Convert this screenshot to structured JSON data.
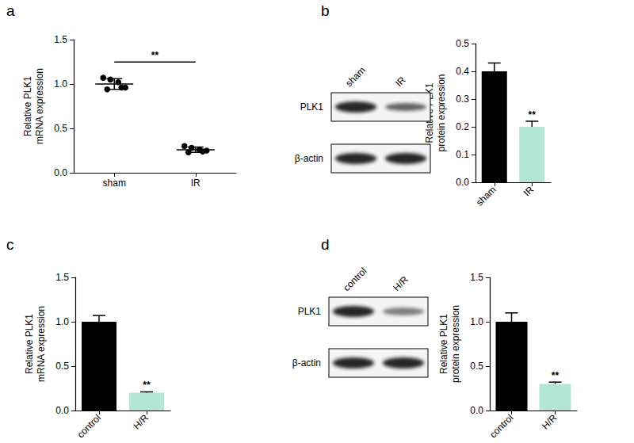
{
  "chart_data": [
    {
      "panel": "a",
      "type": "scatter",
      "ylabel": "Relative PLK1\nmRNA expression",
      "categories": [
        "sham",
        "IR"
      ],
      "points": [
        [
          1.07,
          1.05,
          1.02,
          0.96,
          0.94,
          0.96
        ],
        [
          0.3,
          0.28,
          0.26,
          0.25,
          0.23,
          0.24
        ]
      ],
      "means": [
        1.0,
        0.26
      ],
      "errors": [
        0.06,
        0.03
      ],
      "color": "#000000",
      "ylim": [
        0,
        1.5
      ],
      "yticks": [
        {
          "value": 0,
          "label": "0.0"
        },
        0.5,
        {
          "value": 1,
          "label": "1.0"
        },
        1.5
      ],
      "grid": false,
      "significance": {
        "label": "**",
        "between": [
          "sham",
          "IR"
        ]
      }
    },
    {
      "panel": "b",
      "type": "bar",
      "ylabel": "Relative PLK1\nprotein expression",
      "categories": [
        "sham",
        "IR"
      ],
      "values": [
        0.4,
        0.2
      ],
      "errors": [
        0.03,
        0.02
      ],
      "colors": [
        "#000000",
        "#b3e6d5"
      ],
      "ylim": [
        0,
        0.5
      ],
      "yticks": [
        {
          "value": 0,
          "label": "0.0"
        },
        0.1,
        0.2,
        0.3,
        0.4,
        0.5
      ],
      "grid": false,
      "significance": {
        "label": "**",
        "category": "IR"
      },
      "blot": {
        "lanes": [
          "sham",
          "IR"
        ],
        "rows": [
          "PLK1",
          "β-actin"
        ]
      }
    },
    {
      "panel": "c",
      "type": "bar",
      "ylabel": "Relative PLK1\nmRNA expression",
      "categories": [
        "control",
        "H/R"
      ],
      "values": [
        1.0,
        0.2
      ],
      "errors": [
        0.07,
        0.01
      ],
      "colors": [
        "#000000",
        "#b3e6d5"
      ],
      "ylim": [
        0,
        1.5
      ],
      "yticks": [
        {
          "value": 0,
          "label": "0.0"
        },
        0.5,
        {
          "value": 1,
          "label": "1.0"
        },
        1.5
      ],
      "grid": false,
      "significance": {
        "label": "**",
        "category": "H/R"
      }
    },
    {
      "panel": "d",
      "type": "bar",
      "ylabel": "Relative PLK1\nprotein expression",
      "categories": [
        "control",
        "H/R"
      ],
      "values": [
        1.0,
        0.3
      ],
      "errors": [
        0.1,
        0.02
      ],
      "colors": [
        "#000000",
        "#b3e6d5"
      ],
      "ylim": [
        0,
        1.5
      ],
      "yticks": [
        {
          "value": 0,
          "label": "0.0"
        },
        0.5,
        {
          "value": 1,
          "label": "1.0"
        },
        1.5
      ],
      "grid": false,
      "significance": {
        "label": "**",
        "category": "H/R"
      },
      "blot": {
        "lanes": [
          "control",
          "H/R"
        ],
        "rows": [
          "PLK1",
          "β-actin"
        ]
      }
    }
  ]
}
